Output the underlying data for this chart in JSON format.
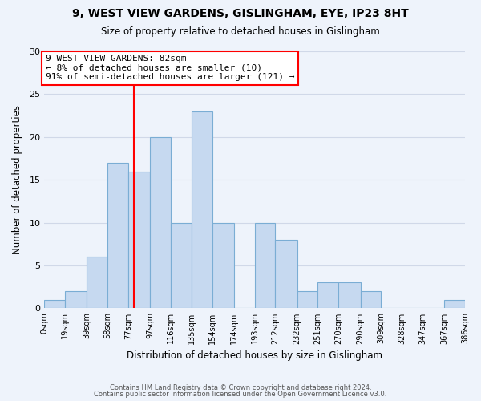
{
  "title": "9, WEST VIEW GARDENS, GISLINGHAM, EYE, IP23 8HT",
  "subtitle": "Size of property relative to detached houses in Gislingham",
  "xlabel": "Distribution of detached houses by size in Gislingham",
  "ylabel": "Number of detached properties",
  "bin_labels": [
    "0sqm",
    "19sqm",
    "39sqm",
    "58sqm",
    "77sqm",
    "97sqm",
    "116sqm",
    "135sqm",
    "154sqm",
    "174sqm",
    "193sqm",
    "212sqm",
    "232sqm",
    "251sqm",
    "270sqm",
    "290sqm",
    "309sqm",
    "328sqm",
    "347sqm",
    "367sqm",
    "386sqm"
  ],
  "bar_heights": [
    1,
    2,
    6,
    17,
    16,
    20,
    10,
    23,
    10,
    0,
    10,
    8,
    2,
    3,
    3,
    2,
    0,
    0,
    0,
    1
  ],
  "bin_edges": [
    0,
    19,
    39,
    58,
    77,
    97,
    116,
    135,
    154,
    174,
    193,
    212,
    232,
    251,
    270,
    290,
    309,
    328,
    347,
    367,
    386
  ],
  "bar_color": "#c6d9f0",
  "bar_edge_color": "#7aadd4",
  "vline_x": 82,
  "vline_color": "red",
  "annotation_title": "9 WEST VIEW GARDENS: 82sqm",
  "annotation_line1": "← 8% of detached houses are smaller (10)",
  "annotation_line2": "91% of semi-detached houses are larger (121) →",
  "annotation_box_color": "white",
  "annotation_box_edge_color": "red",
  "ylim": [
    0,
    30
  ],
  "yticks": [
    0,
    5,
    10,
    15,
    20,
    25,
    30
  ],
  "footer1": "Contains HM Land Registry data © Crown copyright and database right 2024.",
  "footer2": "Contains public sector information licensed under the Open Government Licence v3.0.",
  "background_color": "#eef3fb",
  "grid_color": "#d0d8e8"
}
